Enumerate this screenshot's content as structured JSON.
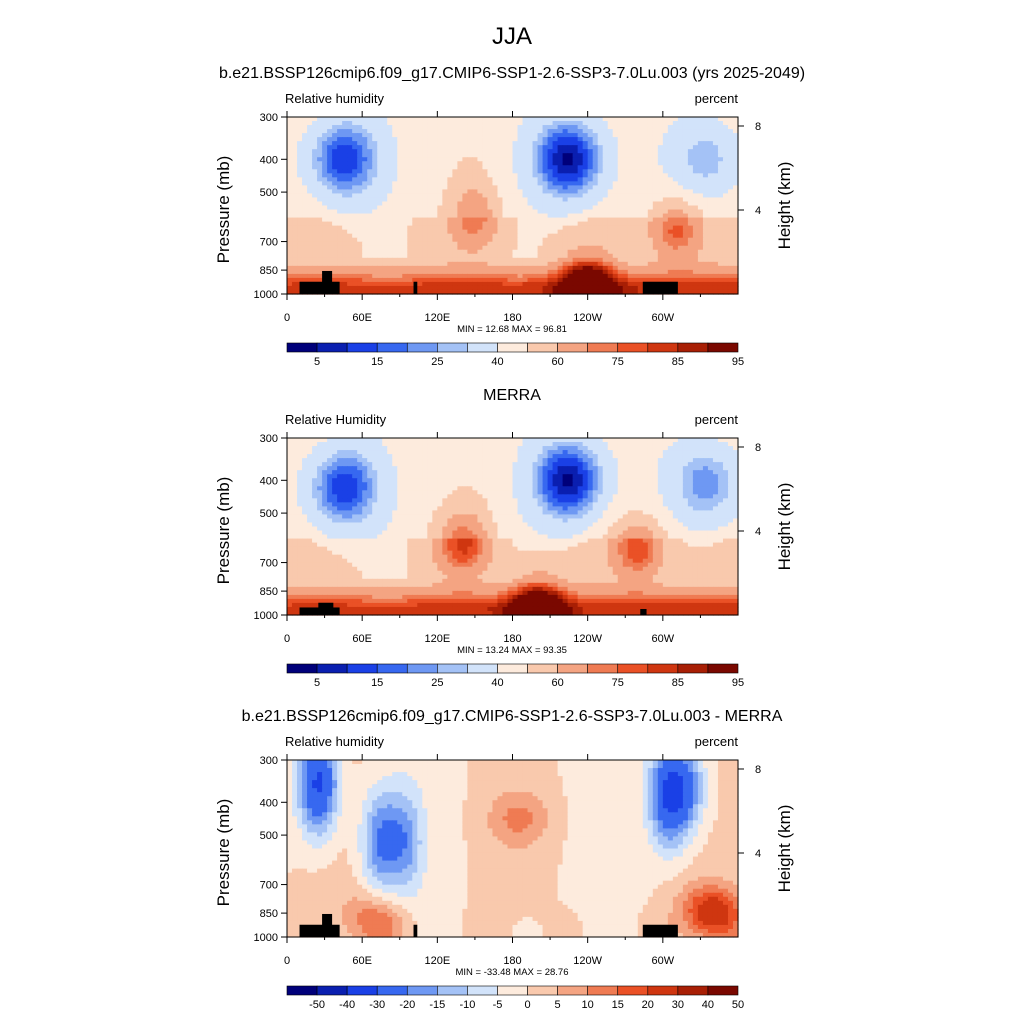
{
  "figure_title": "JJA",
  "colors": {
    "abs_scale": [
      "#00007a",
      "#0a1fb0",
      "#1a40e6",
      "#3768f0",
      "#6e98f3",
      "#a4c2f6",
      "#d2e3fa",
      "#fdebdd",
      "#f9c9ad",
      "#f4a482",
      "#ef7b53",
      "#ea5126",
      "#cf3610",
      "#a81f05",
      "#7a0800"
    ],
    "diff_scale": [
      "#00007a",
      "#0a1fb0",
      "#1a40e6",
      "#3768f0",
      "#6e98f3",
      "#a4c2f6",
      "#d2e3fa",
      "#fdebdd",
      "#f9c9ad",
      "#f4a482",
      "#ef7b53",
      "#ea5126",
      "#cf3610",
      "#a81f05",
      "#7a0800"
    ],
    "topography": "#000000"
  },
  "panels": [
    {
      "title": "b.e21.BSSP126cmip6.f09_g17.CMIP6-SSP1-2.6-SSP3-7.0Lu.003 (yrs 2025-2049)",
      "left_label": "Relative humidity",
      "right_label": "percent",
      "stats": "MIN = 12.68 MAX = 96.81",
      "colorbar_labels": [
        "5",
        "15",
        "25",
        "40",
        "60",
        "75",
        "85",
        "95"
      ]
    },
    {
      "title": "MERRA",
      "left_label": "Relative Humidity",
      "right_label": "percent",
      "stats": "MIN = 13.24 MAX = 93.35",
      "colorbar_labels": [
        "5",
        "15",
        "25",
        "40",
        "60",
        "75",
        "85",
        "95"
      ]
    },
    {
      "title": "b.e21.BSSP126cmip6.f09_g17.CMIP6-SSP1-2.6-SSP3-7.0Lu.003 - MERRA",
      "left_label": "Relative humidity",
      "right_label": "percent",
      "stats": "MIN = -33.48 MAX = 28.76",
      "colorbar_labels": [
        "-50",
        "-40",
        "-30",
        "-20",
        "-15",
        "-10",
        "-5",
        "0",
        "5",
        "10",
        "15",
        "20",
        "30",
        "40",
        "50"
      ]
    }
  ],
  "chart_data": [
    {
      "type": "heatmap",
      "title": "b.e21.BSSP126cmip6.f09_g17.CMIP6-SSP1-2.6-SSP3-7.0Lu.003 (yrs 2025-2049)",
      "ylabel": "Pressure (mb)",
      "y2label": "Height (km)",
      "xticks": [
        "0",
        "60E",
        "120E",
        "180",
        "120W",
        "60W"
      ],
      "yticks": [
        "300",
        "400",
        "500",
        "700",
        "850",
        "1000"
      ],
      "y2ticks": [
        "8",
        "4"
      ],
      "xlim": [
        0,
        360
      ],
      "ylim": [
        1000,
        300
      ],
      "log_scale_y": true,
      "stats": {
        "min": 12.68,
        "max": 96.81
      },
      "features": [
        {
          "lon": 45,
          "p": 400,
          "value": 20
        },
        {
          "lon": 225,
          "p": 400,
          "value": 13
        },
        {
          "lon": 335,
          "p": 400,
          "value": 35
        },
        {
          "lon": 150,
          "p": 600,
          "value": 72
        },
        {
          "lon": 310,
          "p": 650,
          "value": 82
        },
        {
          "lon": 240,
          "p": 950,
          "value": 94
        }
      ],
      "topography": [
        {
          "lon_start": 10,
          "lon_end": 42,
          "p_top": 920
        },
        {
          "lon_start": 28,
          "lon_end": 36,
          "p_top": 855
        },
        {
          "lon_start": 101,
          "lon_end": 104,
          "p_top": 920
        },
        {
          "lon_start": 284,
          "lon_end": 312,
          "p_top": 920
        }
      ]
    },
    {
      "type": "heatmap",
      "title": "MERRA",
      "ylabel": "Pressure (mb)",
      "y2label": "Height (km)",
      "xticks": [
        "0",
        "60E",
        "120E",
        "180",
        "120W",
        "60W"
      ],
      "yticks": [
        "300",
        "400",
        "500",
        "700",
        "850",
        "1000"
      ],
      "y2ticks": [
        "8",
        "4"
      ],
      "xlim": [
        0,
        360
      ],
      "ylim": [
        1000,
        300
      ],
      "log_scale_y": true,
      "stats": {
        "min": 13.24,
        "max": 93.35
      },
      "features": [
        {
          "lon": 45,
          "p": 420,
          "value": 20
        },
        {
          "lon": 225,
          "p": 400,
          "value": 13
        },
        {
          "lon": 335,
          "p": 410,
          "value": 30
        },
        {
          "lon": 140,
          "p": 620,
          "value": 82
        },
        {
          "lon": 280,
          "p": 640,
          "value": 85
        },
        {
          "lon": 200,
          "p": 950,
          "value": 90
        }
      ],
      "topography": [
        {
          "lon_start": 10,
          "lon_end": 42,
          "p_top": 950
        },
        {
          "lon_start": 25,
          "lon_end": 37,
          "p_top": 920
        },
        {
          "lon_start": 282,
          "lon_end": 287,
          "p_top": 960
        }
      ]
    },
    {
      "type": "heatmap",
      "title": "b.e21.BSSP126cmip6.f09_g17.CMIP6-SSP1-2.6-SSP3-7.0Lu.003 - MERRA",
      "ylabel": "Pressure (mb)",
      "y2label": "Height (km)",
      "xticks": [
        "0",
        "60E",
        "120E",
        "180",
        "120W",
        "60W"
      ],
      "yticks": [
        "300",
        "400",
        "500",
        "700",
        "850",
        "1000"
      ],
      "y2ticks": [
        "8",
        "4"
      ],
      "xlim": [
        0,
        360
      ],
      "ylim": [
        1000,
        300
      ],
      "log_scale_y": true,
      "stats": {
        "min": -33.48,
        "max": 28.76
      },
      "features": [
        {
          "lon": 25,
          "p": 350,
          "value": -33
        },
        {
          "lon": 75,
          "p": 520,
          "value": -20
        },
        {
          "lon": 305,
          "p": 380,
          "value": -30
        },
        {
          "lon": 185,
          "p": 450,
          "value": 10
        },
        {
          "lon": 340,
          "p": 850,
          "value": 25
        },
        {
          "lon": 70,
          "p": 900,
          "value": 15
        }
      ],
      "topography": [
        {
          "lon_start": 10,
          "lon_end": 42,
          "p_top": 920
        },
        {
          "lon_start": 28,
          "lon_end": 36,
          "p_top": 855
        },
        {
          "lon_start": 101,
          "lon_end": 104,
          "p_top": 920
        },
        {
          "lon_start": 284,
          "lon_end": 312,
          "p_top": 920
        }
      ]
    }
  ]
}
